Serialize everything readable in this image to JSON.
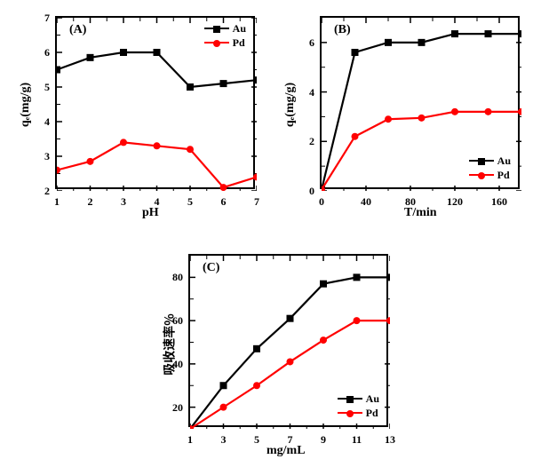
{
  "colors": {
    "au": "#000000",
    "pd": "#ff0000",
    "axis": "#000000",
    "bg": "#ffffff"
  },
  "series_labels": {
    "au": "Au",
    "pd": "Pd"
  },
  "panelA": {
    "label": "(A)",
    "xlabel": "pH",
    "ylabel": "qₑ(mg/g)",
    "xlim": [
      1,
      7
    ],
    "ylim": [
      2,
      7
    ],
    "xticks": [
      1,
      2,
      3,
      4,
      5,
      6,
      7
    ],
    "yticks": [
      2,
      3,
      4,
      5,
      6,
      7
    ],
    "au": {
      "x": [
        1,
        2,
        3,
        4,
        5,
        6,
        7
      ],
      "y": [
        5.5,
        5.85,
        6.0,
        6.0,
        5.0,
        5.1,
        5.2
      ]
    },
    "pd": {
      "x": [
        1,
        2,
        3,
        4,
        5,
        6,
        7
      ],
      "y": [
        2.6,
        2.85,
        3.4,
        3.3,
        3.2,
        2.1,
        2.4
      ]
    },
    "line_width": 2.2,
    "marker_size": 8,
    "legend_pos": "top-right",
    "tick_fontsize": 12,
    "label_fontsize": 14
  },
  "panelB": {
    "label": "(B)",
    "xlabel": "T/min",
    "ylabel": "qₑ(mg/g)",
    "xlim": [
      0,
      180
    ],
    "ylim": [
      0,
      7
    ],
    "xticks": [
      0,
      40,
      80,
      120,
      160
    ],
    "yticks": [
      0,
      2,
      4,
      6
    ],
    "au": {
      "x": [
        0,
        30,
        60,
        90,
        120,
        150,
        180
      ],
      "y": [
        0.05,
        5.6,
        6.0,
        6.0,
        6.35,
        6.35,
        6.35
      ]
    },
    "pd": {
      "x": [
        0,
        30,
        60,
        90,
        120,
        150,
        180
      ],
      "y": [
        0.05,
        2.2,
        2.9,
        2.95,
        3.2,
        3.2,
        3.2
      ]
    },
    "line_width": 2.2,
    "marker_size": 8,
    "legend_pos": "bottom-right",
    "tick_fontsize": 12,
    "label_fontsize": 14
  },
  "panelC": {
    "label": "(C)",
    "xlabel": "mg/mL",
    "ylabel": "吸收速率%",
    "xlabel_style": "italic-none",
    "xlim": [
      1,
      13
    ],
    "ylim": [
      10,
      90
    ],
    "xticks": [
      1,
      3,
      5,
      7,
      9,
      11,
      13
    ],
    "yticks": [
      20,
      40,
      60,
      80
    ],
    "au": {
      "x": [
        1,
        3,
        5,
        7,
        9,
        11,
        13
      ],
      "y": [
        10,
        30,
        47,
        61,
        77,
        80,
        80
      ]
    },
    "pd": {
      "x": [
        1,
        3,
        5,
        7,
        9,
        11,
        13
      ],
      "y": [
        10,
        20,
        30,
        41,
        51,
        60,
        60
      ]
    },
    "line_width": 2.2,
    "marker_size": 8,
    "legend_pos": "bottom-right",
    "tick_fontsize": 12,
    "label_fontsize": 14
  }
}
